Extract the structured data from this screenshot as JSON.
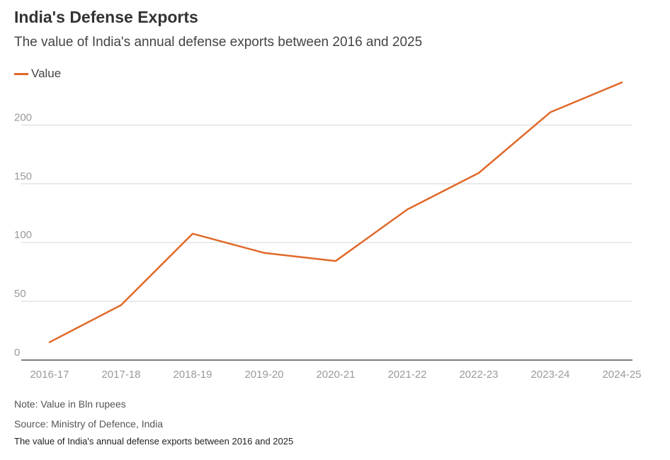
{
  "chart_data": {
    "type": "line",
    "title": "India's Defense Exports",
    "subtitle": "The value of India's annual defense exports between 2016 and 2025",
    "categories": [
      "2016-17",
      "2017-18",
      "2018-19",
      "2019-20",
      "2020-21",
      "2021-22",
      "2022-23",
      "2023-24",
      "2024-25"
    ],
    "series": [
      {
        "name": "Value",
        "color": "#e0692a",
        "values": [
          15.2,
          46.8,
          107.5,
          91.2,
          84.3,
          128.1,
          159.2,
          210.8,
          236.2
        ]
      }
    ],
    "ylim": [
      0,
      240
    ],
    "yticks": [
      0,
      50,
      100,
      150,
      200
    ],
    "grid": true,
    "legend": "top-left",
    "xlabel": "",
    "ylabel": ""
  },
  "footer": {
    "note": "Note: Value in Bln rupees",
    "source": "Source: Ministry of Defence, India",
    "caption": "The value of India's annual defense exports between 2016 and 2025"
  }
}
